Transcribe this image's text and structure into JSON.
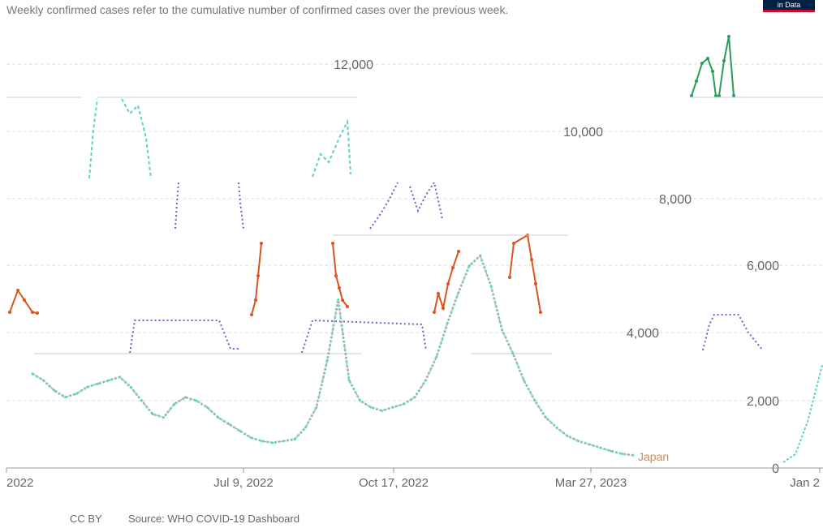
{
  "subtitle": "Weekly confirmed cases refer to the cumulative number of confirmed cases over the previous week.",
  "logo_text": "in Data",
  "footer": {
    "license": "CC BY",
    "source": "Source: WHO COVID-19 Dashboard"
  },
  "colors": {
    "green": "#2a9d5c",
    "orange": "#d9541e",
    "purple": "#7a5ac8",
    "teal": "#5fd3c0",
    "japan_label": "#c98a5b"
  },
  "chart_data": {
    "type": "line",
    "title": "",
    "xlabel": "",
    "ylabel": "",
    "ylim": [
      0,
      13000
    ],
    "grid": true,
    "y_ticks": [
      "0",
      "2,000",
      "4,000",
      "6,000",
      "8,000",
      "10,000",
      "12,000"
    ],
    "x_ticks": [
      "2022",
      "Jul 9, 2022",
      "Oct 17, 2022",
      "Mar 27, 2023",
      "Jan 2"
    ],
    "series": [
      {
        "name": "Japan",
        "values": [
          2800,
          2600,
          2300,
          2100,
          2200,
          2400,
          2500,
          2600,
          2700,
          2400,
          2000,
          1600,
          1500,
          1900,
          2100,
          2000,
          1800,
          1500,
          1300,
          1100,
          900,
          800,
          750,
          800,
          850,
          1200,
          1800,
          3200,
          5000,
          2600,
          2000,
          1800,
          1700,
          1800,
          1900,
          2100,
          2600,
          3300,
          4300,
          5200,
          6000,
          6300,
          5400,
          4100,
          3400,
          2600,
          2000,
          1500,
          1200,
          950,
          800,
          700,
          600,
          500,
          420,
          380
        ]
      }
    ]
  }
}
